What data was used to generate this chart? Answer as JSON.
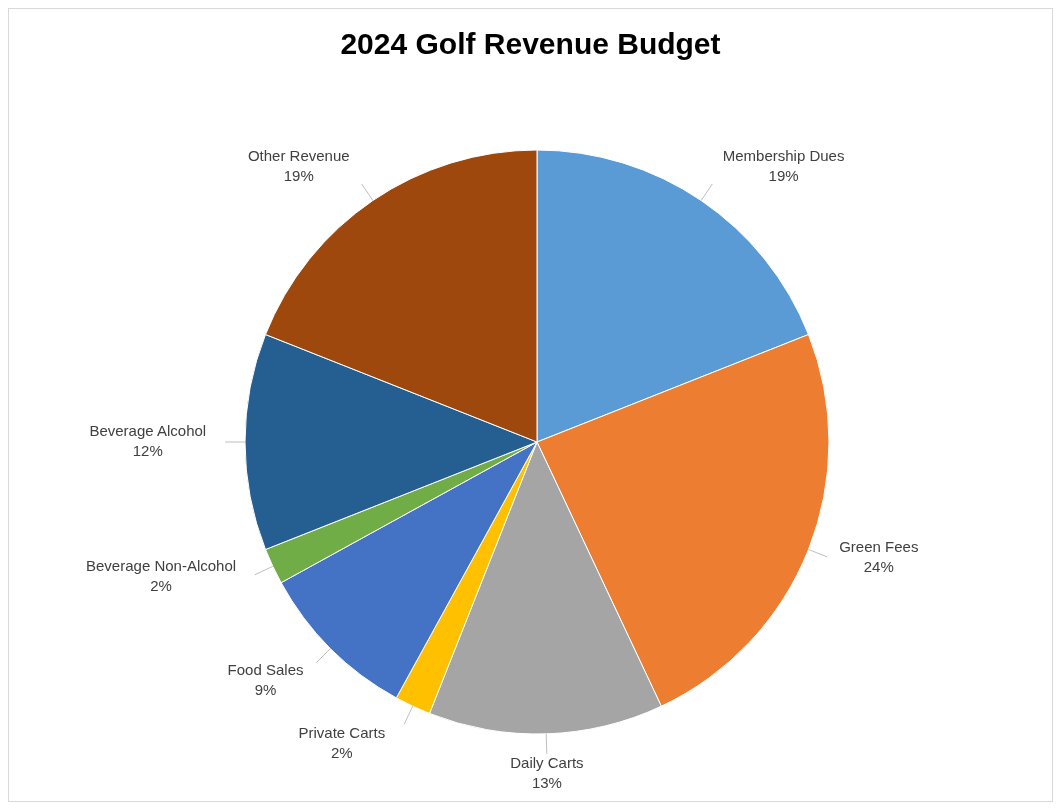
{
  "chart_data": {
    "type": "pie",
    "title": "2024 Golf Revenue Budget",
    "categories": [
      "Membership Dues",
      "Green Fees",
      "Daily Carts",
      "Private Carts",
      "Food Sales",
      "Beverage Non-Alcohol",
      "Beverage Alcohol",
      "Other Revenue"
    ],
    "values": [
      19,
      24,
      13,
      2,
      9,
      2,
      12,
      19
    ],
    "value_labels": [
      "19%",
      "24%",
      "13%",
      "2%",
      "9%",
      "2%",
      "12%",
      "19%"
    ],
    "colors": [
      "#5b9bd5",
      "#ed7d31",
      "#a5a5a5",
      "#ffc000",
      "#4472c4",
      "#70ad47",
      "#255e91",
      "#9e480e"
    ],
    "legend": false
  }
}
